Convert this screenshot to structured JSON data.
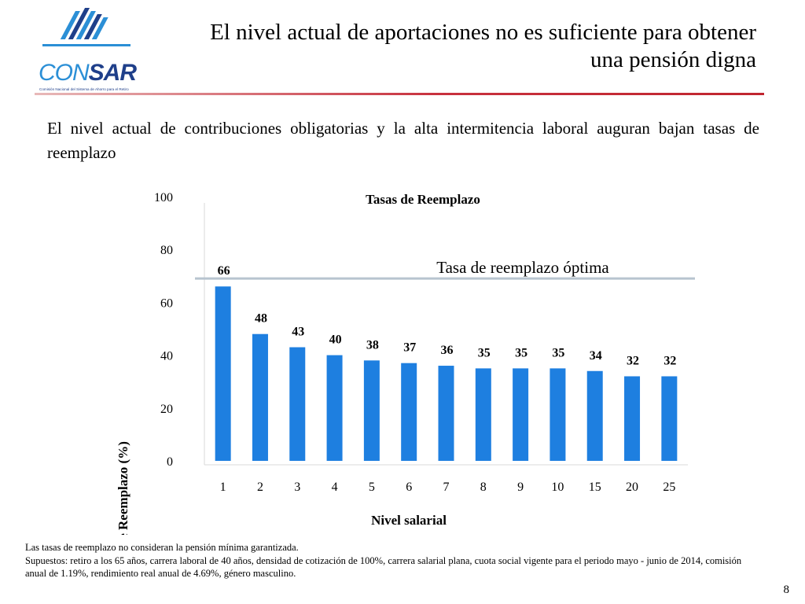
{
  "logo": {
    "text_con": "CON",
    "text_sar": "SAR",
    "tagline": "Comisión Nacional del Sistema de Ahorro para el Retiro",
    "colors": {
      "light_blue": "#2b8fd6",
      "dark_blue": "#1f3f8a"
    }
  },
  "slide": {
    "title_line1": "El nivel actual de aportaciones no es suficiente para obtener",
    "title_line2": "una pensión digna",
    "intro": "El nivel actual de contribuciones obligatorias y la alta intermitencia laboral auguran bajan tasas de reemplazo",
    "page_number": "8",
    "accent_color": "#c8313e"
  },
  "chart_data": {
    "type": "bar",
    "title": "Tasas de Reemplazo",
    "xlabel": "Nivel salarial",
    "ylabel": "Tasa de Reemplazo (%)",
    "categories": [
      "1",
      "2",
      "3",
      "4",
      "5",
      "6",
      "7",
      "8",
      "9",
      "10",
      "15",
      "20",
      "25"
    ],
    "values": [
      66,
      48,
      43,
      40,
      38,
      37,
      36,
      35,
      35,
      35,
      34,
      32,
      32
    ],
    "data_labels": [
      "66",
      "48",
      "43",
      "40",
      "38",
      "37",
      "36",
      "35",
      "35",
      "35",
      "34",
      "32",
      "32"
    ],
    "ylim": [
      0,
      100
    ],
    "yticks": [
      0,
      20,
      40,
      60,
      80,
      100
    ],
    "ytick_labels": [
      "0",
      "20",
      "40",
      "60",
      "80",
      "100"
    ],
    "grid": false,
    "bar_color": "#1e7fe0",
    "reference_line": {
      "value": 69,
      "label": "Tasa de reemplazo óptima",
      "color": "#b8c4cf"
    }
  },
  "notes": {
    "line1": "Las tasas de reemplazo no consideran la pensión mínima garantizada.",
    "line2": "Supuestos: retiro a los 65 años, carrera laboral de 40 años, densidad de cotización de 100%, carrera salarial plana, cuota social vigente para el periodo mayo - junio de 2014, comisión anual de 1.19%, rendimiento real anual de 4.69%, género masculino."
  }
}
